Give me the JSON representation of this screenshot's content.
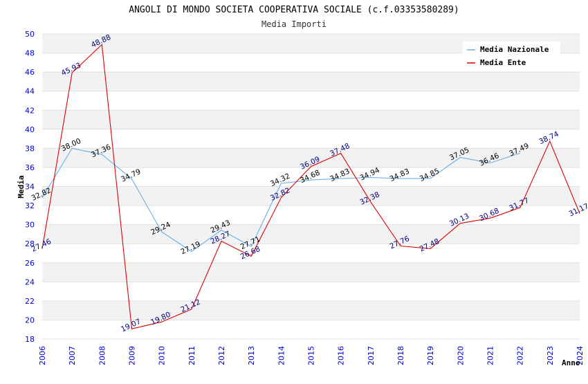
{
  "chart_data": {
    "type": "line",
    "title": "ANGOLI DI MONDO SOCIETA COOPERATIVA SOCIALE (c.f.03353580289)",
    "subtitle": "Media Importi",
    "xlabel": "Anno",
    "ylabel": "Media",
    "ylim": [
      18,
      50
    ],
    "y_ticks": [
      18,
      20,
      22,
      24,
      26,
      28,
      30,
      32,
      34,
      36,
      38,
      40,
      42,
      44,
      46,
      48,
      50
    ],
    "categories": [
      "2006",
      "2007",
      "2008",
      "2009",
      "2010",
      "2011",
      "2012",
      "2013",
      "2014",
      "2015",
      "2016",
      "2017",
      "2018",
      "2019",
      "2020",
      "2021",
      "2022",
      "2023",
      "2024"
    ],
    "grid": true,
    "legend_position": "top-right",
    "series": [
      {
        "name": "Media Nazionale",
        "color": "#6aaee8",
        "label_color": "#000000",
        "values": [
          32.82,
          38.0,
          37.36,
          34.79,
          29.24,
          27.19,
          29.43,
          27.71,
          34.32,
          34.68,
          34.83,
          34.94,
          34.83,
          34.85,
          37.05,
          36.46,
          37.49,
          null,
          null
        ],
        "labels": [
          "32.82",
          "38.00",
          "37.36",
          "34.79",
          "29.24",
          "27.19",
          "29.43",
          "27.71",
          "34.32",
          "34.68",
          "34.83",
          "34.94",
          "34.83",
          "34.85",
          "37.05",
          "36.46",
          "37.49",
          null,
          null
        ]
      },
      {
        "name": "Media Ente",
        "color": "#e00000",
        "label_color": "#000080",
        "values": [
          27.46,
          45.93,
          48.88,
          19.07,
          19.8,
          21.12,
          28.27,
          26.68,
          32.82,
          36.09,
          37.48,
          32.38,
          27.76,
          27.48,
          30.13,
          30.68,
          31.77,
          38.74,
          31.17
        ],
        "labels": [
          "27.46",
          "45.93",
          "48.88",
          "19.07",
          "19.80",
          "21.12",
          "28.27",
          "26.68",
          "32.82",
          "36.09",
          "37.48",
          "32.38",
          "27.76",
          "27.48",
          "30.13",
          "30.68",
          "31.77",
          "38.74",
          "31.17"
        ]
      }
    ]
  }
}
